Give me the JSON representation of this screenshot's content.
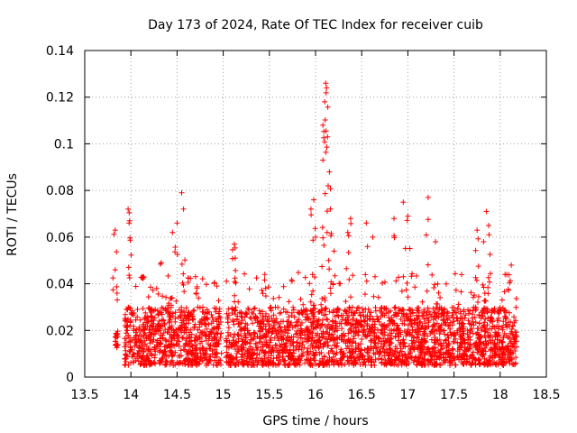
{
  "chart_data": {
    "type": "scatter",
    "title": "Day 173 of 2024, Rate Of TEC Index for receiver cuib",
    "xlabel": "GPS time / hours",
    "ylabel": "ROTI / TECUs",
    "xlim": [
      13.5,
      18.5
    ],
    "ylim": [
      0,
      0.14
    ],
    "xticks": [
      "13.5",
      "14",
      "14.5",
      "15",
      "15.5",
      "16",
      "16.5",
      "17",
      "17.5",
      "18",
      "18.5"
    ],
    "yticks": [
      "0",
      "0.02",
      "0.04",
      "0.06",
      "0.08",
      "0.1",
      "0.12",
      "0.14"
    ],
    "grid": true,
    "marker": "+",
    "color": "#ff0000",
    "series": [
      {
        "name": "ROTI",
        "description": "dense cloud of points, mostly 0.005-0.03 TECUs, with spikes",
        "segments": [
          {
            "x_start": 13.83,
            "x_end": 13.86,
            "base_min": 0.012,
            "base_max": 0.02
          },
          {
            "x_start": 13.93,
            "x_end": 14.98,
            "base_min": 0.005,
            "base_max": 0.03
          },
          {
            "x_start": 15.03,
            "x_end": 18.18,
            "base_min": 0.005,
            "base_max": 0.03
          }
        ],
        "peaks": [
          {
            "x": 13.83,
            "y": 0.063
          },
          {
            "x": 13.83,
            "y": 0.046
          },
          {
            "x": 13.97,
            "y": 0.072
          },
          {
            "x": 13.98,
            "y": 0.066
          },
          {
            "x": 14.13,
            "y": 0.043
          },
          {
            "x": 14.33,
            "y": 0.049
          },
          {
            "x": 14.45,
            "y": 0.062
          },
          {
            "x": 14.5,
            "y": 0.066
          },
          {
            "x": 14.55,
            "y": 0.079
          },
          {
            "x": 14.57,
            "y": 0.072
          },
          {
            "x": 14.7,
            "y": 0.043
          },
          {
            "x": 15.12,
            "y": 0.057
          },
          {
            "x": 15.13,
            "y": 0.051
          },
          {
            "x": 15.45,
            "y": 0.044
          },
          {
            "x": 15.95,
            "y": 0.072
          },
          {
            "x": 15.98,
            "y": 0.076
          },
          {
            "x": 16.0,
            "y": 0.06
          },
          {
            "x": 16.08,
            "y": 0.093
          },
          {
            "x": 16.08,
            "y": 0.108
          },
          {
            "x": 16.1,
            "y": 0.118
          },
          {
            "x": 16.11,
            "y": 0.126
          },
          {
            "x": 16.12,
            "y": 0.124
          },
          {
            "x": 16.13,
            "y": 0.103
          },
          {
            "x": 16.15,
            "y": 0.088
          },
          {
            "x": 16.16,
            "y": 0.072
          },
          {
            "x": 16.2,
            "y": 0.054
          },
          {
            "x": 16.35,
            "y": 0.062
          },
          {
            "x": 16.38,
            "y": 0.068
          },
          {
            "x": 16.55,
            "y": 0.066
          },
          {
            "x": 16.62,
            "y": 0.06
          },
          {
            "x": 16.85,
            "y": 0.068
          },
          {
            "x": 16.95,
            "y": 0.075
          },
          {
            "x": 17.0,
            "y": 0.069
          },
          {
            "x": 17.22,
            "y": 0.077
          },
          {
            "x": 17.3,
            "y": 0.058
          },
          {
            "x": 17.75,
            "y": 0.063
          },
          {
            "x": 17.82,
            "y": 0.058
          },
          {
            "x": 17.85,
            "y": 0.071
          },
          {
            "x": 17.88,
            "y": 0.061
          },
          {
            "x": 18.12,
            "y": 0.048
          }
        ]
      }
    ]
  }
}
